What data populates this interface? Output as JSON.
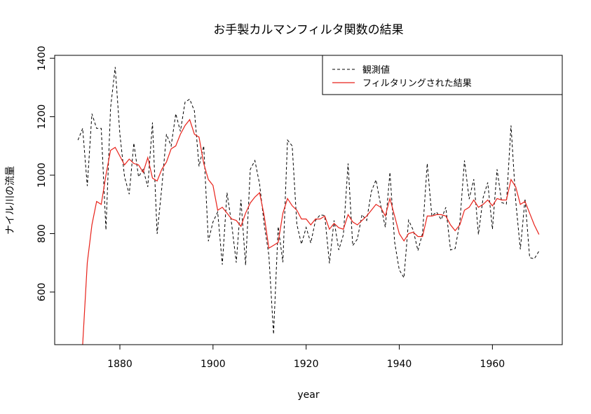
{
  "chart_data": {
    "type": "line",
    "title": "お手製カルマンフィルタ関数の結果",
    "xlabel": "year",
    "ylabel": "ナイル川の流量",
    "xlim": [
      1866,
      1975
    ],
    "ylim": [
      420,
      1410
    ],
    "xticks": [
      1880,
      1900,
      1920,
      1940,
      1960
    ],
    "yticks": [
      600,
      800,
      1000,
      1200,
      1400
    ],
    "legend_position": "top-right",
    "x": [
      1871,
      1872,
      1873,
      1874,
      1875,
      1876,
      1877,
      1878,
      1879,
      1880,
      1881,
      1882,
      1883,
      1884,
      1885,
      1886,
      1887,
      1888,
      1889,
      1890,
      1891,
      1892,
      1893,
      1894,
      1895,
      1896,
      1897,
      1898,
      1899,
      1900,
      1901,
      1902,
      1903,
      1904,
      1905,
      1906,
      1907,
      1908,
      1909,
      1910,
      1911,
      1912,
      1913,
      1914,
      1915,
      1916,
      1917,
      1918,
      1919,
      1920,
      1921,
      1922,
      1923,
      1924,
      1925,
      1926,
      1927,
      1928,
      1929,
      1930,
      1931,
      1932,
      1933,
      1934,
      1935,
      1936,
      1937,
      1938,
      1939,
      1940,
      1941,
      1942,
      1943,
      1944,
      1945,
      1946,
      1947,
      1948,
      1949,
      1950,
      1951,
      1952,
      1953,
      1954,
      1955,
      1956,
      1957,
      1958,
      1959,
      1960,
      1961,
      1962,
      1963,
      1964,
      1965,
      1966,
      1967,
      1968,
      1969,
      1970
    ],
    "series": [
      {
        "name": "観測値",
        "color": "#000000",
        "dash": "dashed",
        "values": [
          1120,
          1160,
          963,
          1210,
          1160,
          1160,
          813,
          1230,
          1370,
          1140,
          995,
          935,
          1110,
          994,
          1020,
          960,
          1180,
          799,
          958,
          1140,
          1100,
          1210,
          1150,
          1250,
          1260,
          1220,
          1030,
          1100,
          774,
          840,
          874,
          694,
          940,
          833,
          701,
          916,
          692,
          1020,
          1050,
          969,
          831,
          726,
          456,
          824,
          702,
          1120,
          1100,
          832,
          764,
          821,
          768,
          845,
          864,
          862,
          698,
          845,
          744,
          796,
          1040,
          759,
          781,
          865,
          845,
          944,
          984,
          897,
          822,
          1010,
          771,
          676,
          649,
          846,
          812,
          742,
          801,
          1040,
          860,
          874,
          848,
          890,
          744,
          749,
          838,
          1050,
          918,
          986,
          797,
          923,
          975,
          815,
          1020,
          906,
          901,
          1170,
          912,
          746,
          919,
          718,
          714,
          740
        ]
      },
      {
        "name": "フィルタリングされた結果",
        "color": "#e8221a",
        "dash": "solid",
        "values": [
          null,
          420,
          700,
          830,
          910,
          900,
          1000,
          1085,
          1095,
          1065,
          1035,
          1055,
          1040,
          1035,
          1010,
          1060,
          990,
          980,
          1020,
          1045,
          1090,
          1100,
          1140,
          1170,
          1190,
          1140,
          1130,
          1040,
          985,
          965,
          880,
          890,
          870,
          850,
          845,
          825,
          870,
          905,
          925,
          940,
          860,
          750,
          760,
          770,
          870,
          920,
          895,
          880,
          850,
          850,
          830,
          850,
          850,
          860,
          815,
          835,
          820,
          815,
          865,
          840,
          830,
          845,
          860,
          880,
          900,
          890,
          860,
          920,
          860,
          800,
          775,
          800,
          805,
          790,
          790,
          860,
          860,
          865,
          865,
          860,
          830,
          810,
          830,
          880,
          890,
          915,
          890,
          900,
          915,
          895,
          920,
          915,
          915,
          985,
          960,
          900,
          910,
          870,
          830,
          797
        ]
      }
    ]
  }
}
